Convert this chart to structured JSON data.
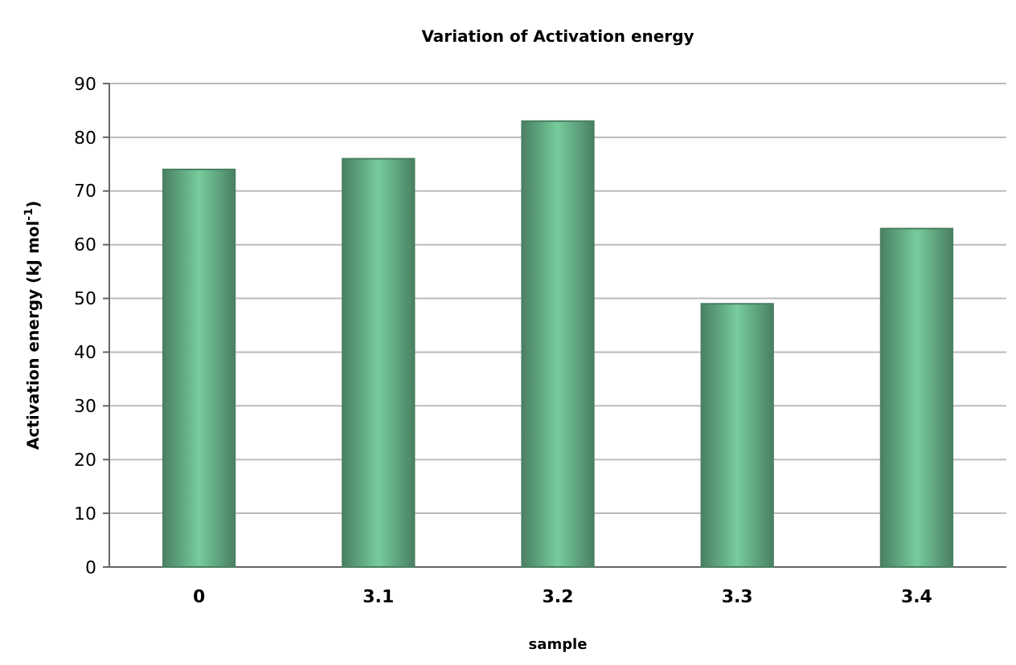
{
  "chart_data": {
    "type": "bar",
    "title": "Variation of Activation energy",
    "xlabel": "sample",
    "ylabel": "Activation energy (kJ mol$^{-1}$)",
    "categories": [
      "0",
      "3.1",
      "3.2",
      "3.3",
      "3.4"
    ],
    "values": [
      74,
      76,
      83,
      49,
      63
    ],
    "color": "#4a8062",
    "ylim": [
      0,
      90
    ],
    "yticks": [
      0,
      10,
      20,
      30,
      40,
      50,
      60,
      70,
      80,
      90
    ],
    "grid": "y"
  }
}
